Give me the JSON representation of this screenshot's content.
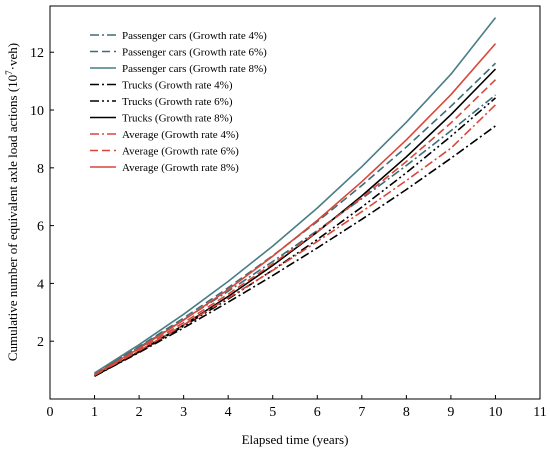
{
  "chart_data": {
    "type": "line",
    "xlabel": "Elapsed time (years)",
    "ylabel": {
      "prefix": "Cumulative number of equivalent axle load actions (10",
      "sup": "7",
      "suffix": "·veh)"
    },
    "xlim": [
      0,
      11
    ],
    "ylim": [
      0,
      13.6
    ],
    "xticks": [
      "0",
      "1",
      "2",
      "3",
      "4",
      "5",
      "6",
      "7",
      "8",
      "9",
      "10",
      "11"
    ],
    "yticks": [
      "2",
      "4",
      "6",
      "8",
      "10",
      "12"
    ],
    "ytick_values": [
      2,
      4,
      6,
      8,
      10,
      12
    ],
    "grid": false,
    "legend_position": "top-left",
    "x": [
      1,
      2,
      3,
      4,
      5,
      6,
      7,
      8,
      9,
      10
    ],
    "series": [
      {
        "name": "Passenger cars (Growth rate 4%)",
        "color": "#3d6e75",
        "dash": "dashdot",
        "values": [
          0.88,
          1.79,
          2.74,
          3.73,
          4.76,
          5.83,
          6.93,
          8.08,
          9.28,
          10.52
        ]
      },
      {
        "name": "Passenger cars (Growth rate 6%)",
        "color": "#3d6e75",
        "dash": "dashed",
        "values": [
          0.88,
          1.81,
          2.8,
          3.85,
          4.96,
          6.14,
          7.39,
          8.72,
          10.13,
          11.62
        ]
      },
      {
        "name": "Passenger cars (Growth rate 8%)",
        "color": "#4a7d86",
        "dash": "solid",
        "values": [
          0.9,
          1.88,
          2.93,
          4.07,
          5.29,
          6.61,
          8.04,
          9.58,
          11.24,
          13.2
        ]
      },
      {
        "name": "Trucks (Growth rate 4%)",
        "color": "#000000",
        "dash": "dashdot",
        "values": [
          0.79,
          1.61,
          2.46,
          3.35,
          4.27,
          5.23,
          6.22,
          7.25,
          8.33,
          9.45
        ]
      },
      {
        "name": "Trucks (Growth rate 6%)",
        "color": "#000000",
        "dash": "dashdotdot",
        "values": [
          0.79,
          1.63,
          2.52,
          3.46,
          4.46,
          5.52,
          6.64,
          7.83,
          9.09,
          10.42
        ]
      },
      {
        "name": "Trucks (Growth rate 8%)",
        "color": "#000000",
        "dash": "solid",
        "values": [
          0.79,
          1.64,
          2.56,
          3.55,
          4.62,
          5.78,
          7.03,
          8.38,
          9.84,
          11.42
        ]
      },
      {
        "name": "Average (Growth rate 4%)",
        "color": "#d9473a",
        "dash": "dashdot",
        "values": [
          0.82,
          1.67,
          2.56,
          3.49,
          4.45,
          5.45,
          6.48,
          7.56,
          8.68,
          10.18
        ]
      },
      {
        "name": "Average (Growth rate 6%)",
        "color": "#d9473a",
        "dash": "dashed",
        "values": [
          0.83,
          1.71,
          2.64,
          3.63,
          4.68,
          5.79,
          6.97,
          8.22,
          9.55,
          11.05
        ]
      },
      {
        "name": "Average (Growth rate 8%)",
        "color": "#d9473a",
        "dash": "solid",
        "values": [
          0.84,
          1.75,
          2.73,
          3.79,
          4.94,
          6.18,
          7.52,
          8.97,
          10.53,
          12.3
        ]
      }
    ]
  }
}
